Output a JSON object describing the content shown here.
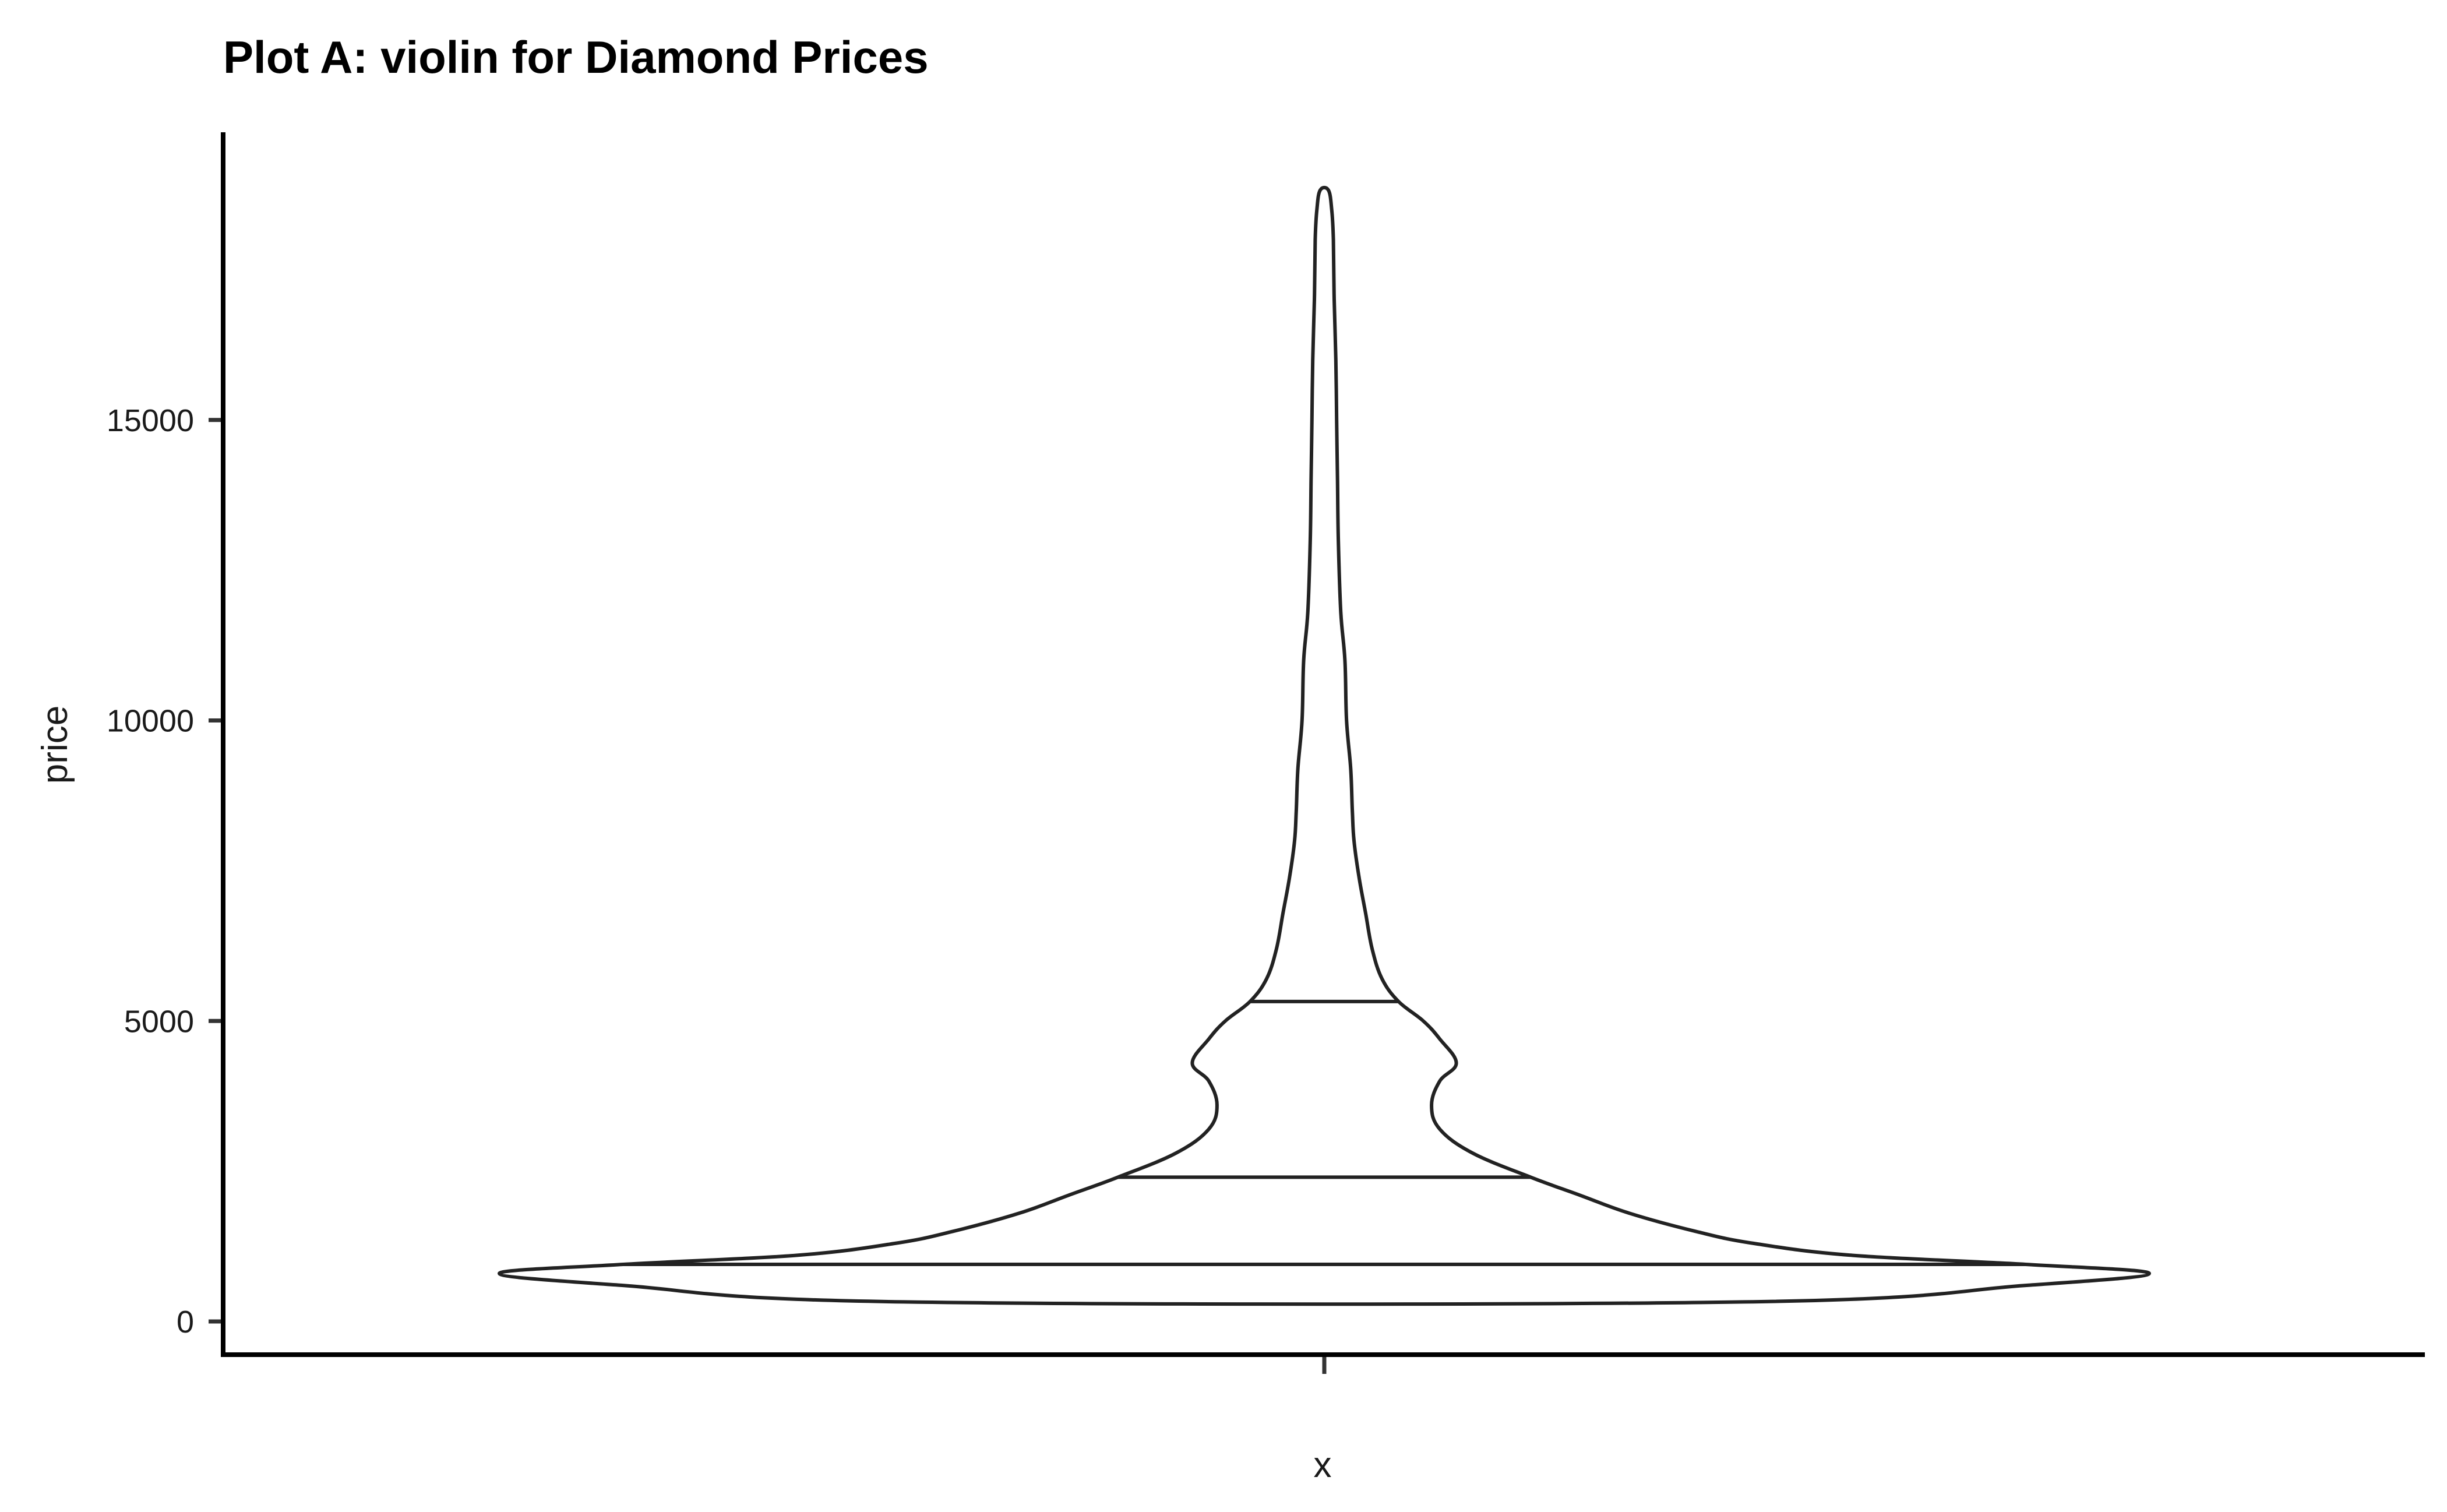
{
  "chart_data": {
    "type": "violin",
    "title": "Plot A: violin for Diamond Prices",
    "xlabel": "x",
    "ylabel": "price",
    "ylim": [
      -600,
      19600
    ],
    "yticks": [
      0,
      5000,
      10000,
      15000
    ],
    "ytick_labels": [
      "0",
      "5000",
      "10000",
      "15000"
    ],
    "categories": [
      ""
    ],
    "grid": false,
    "legend": "none",
    "series": [
      {
        "category": "",
        "min": 326,
        "max": 18823,
        "quantiles": [
          950,
          2401,
          5324
        ],
        "density_profile": [
          {
            "price": 326,
            "half_width": 0.51
          },
          {
            "price": 600,
            "half_width": 0.85
          },
          {
            "price": 800,
            "half_width": 1.0
          },
          {
            "price": 950,
            "half_width": 0.85
          },
          {
            "price": 1100,
            "half_width": 0.64
          },
          {
            "price": 1300,
            "half_width": 0.52
          },
          {
            "price": 1500,
            "half_width": 0.45
          },
          {
            "price": 1800,
            "half_width": 0.37
          },
          {
            "price": 2100,
            "half_width": 0.31
          },
          {
            "price": 2401,
            "half_width": 0.25
          },
          {
            "price": 2800,
            "half_width": 0.18
          },
          {
            "price": 3200,
            "half_width": 0.14
          },
          {
            "price": 3600,
            "half_width": 0.13
          },
          {
            "price": 4000,
            "half_width": 0.14
          },
          {
            "price": 4300,
            "half_width": 0.16
          },
          {
            "price": 4700,
            "half_width": 0.14
          },
          {
            "price": 5000,
            "half_width": 0.12
          },
          {
            "price": 5324,
            "half_width": 0.09
          },
          {
            "price": 5700,
            "half_width": 0.07
          },
          {
            "price": 6200,
            "half_width": 0.058
          },
          {
            "price": 6800,
            "half_width": 0.05
          },
          {
            "price": 7400,
            "half_width": 0.042
          },
          {
            "price": 8000,
            "half_width": 0.036
          },
          {
            "price": 8500,
            "half_width": 0.034
          },
          {
            "price": 9200,
            "half_width": 0.032
          },
          {
            "price": 10000,
            "half_width": 0.027
          },
          {
            "price": 11000,
            "half_width": 0.025
          },
          {
            "price": 11800,
            "half_width": 0.02
          },
          {
            "price": 13000,
            "half_width": 0.017
          },
          {
            "price": 14000,
            "half_width": 0.016
          },
          {
            "price": 15000,
            "half_width": 0.015
          },
          {
            "price": 16000,
            "half_width": 0.014
          },
          {
            "price": 17000,
            "half_width": 0.012
          },
          {
            "price": 18000,
            "half_width": 0.011
          },
          {
            "price": 18500,
            "half_width": 0.009
          },
          {
            "price": 18823,
            "half_width": 0.005
          }
        ]
      }
    ]
  }
}
